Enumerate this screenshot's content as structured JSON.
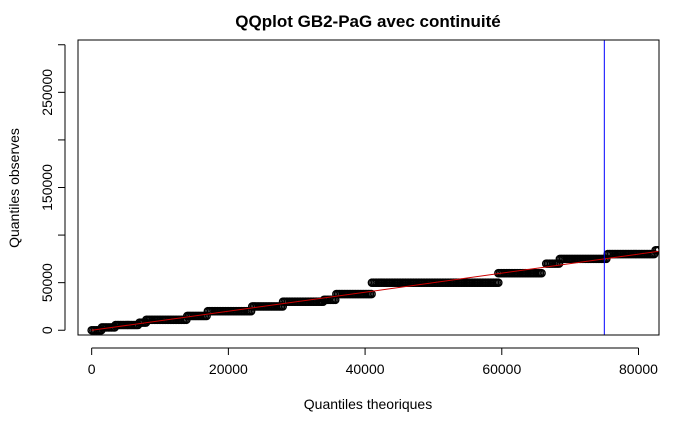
{
  "chart_data": {
    "type": "scatter",
    "title": "QQplot GB2-PaG avec continuité",
    "xlabel": "Quantiles theoriques",
    "ylabel": "Quantiles observes",
    "xlim": [
      -2000,
      83000
    ],
    "ylim": [
      -5000,
      305000
    ],
    "xticks": [
      0,
      20000,
      40000,
      60000,
      80000
    ],
    "xtick_labels": [
      "0",
      "20000",
      "40000",
      "60000",
      "80000"
    ],
    "yticks": [
      0,
      50000,
      150000,
      250000
    ],
    "ytick_labels": [
      "0",
      "50000",
      "150000",
      "250000"
    ],
    "yticks_minor": [
      100000,
      200000,
      300000
    ],
    "series": [
      {
        "kind": "points",
        "color": "#000000",
        "steps": [
          {
            "x0": 0,
            "x1": 1500,
            "y": 0
          },
          {
            "x0": 1500,
            "x1": 3500,
            "y": 3000
          },
          {
            "x0": 3500,
            "x1": 7000,
            "y": 5500
          },
          {
            "x0": 7000,
            "x1": 8000,
            "y": 8000
          },
          {
            "x0": 8000,
            "x1": 14000,
            "y": 11000
          },
          {
            "x0": 14000,
            "x1": 17000,
            "y": 15000
          },
          {
            "x0": 17000,
            "x1": 23500,
            "y": 20000
          },
          {
            "x0": 23500,
            "x1": 28000,
            "y": 25000
          },
          {
            "x0": 28000,
            "x1": 34000,
            "y": 30000
          },
          {
            "x0": 34000,
            "x1": 35800,
            "y": 32000
          },
          {
            "x0": 35800,
            "x1": 41000,
            "y": 38000
          },
          {
            "x0": 41000,
            "x1": 59500,
            "y": 50000
          },
          {
            "x0": 59500,
            "x1": 66000,
            "y": 60000
          },
          {
            "x0": 66500,
            "x1": 68500,
            "y": 70000
          },
          {
            "x0": 68500,
            "x1": 75500,
            "y": 75000
          },
          {
            "x0": 75500,
            "x1": 82500,
            "y": 80000
          },
          {
            "x0": 82500,
            "x1": 83000,
            "y": 84000
          }
        ]
      },
      {
        "kind": "line",
        "color": "#cc0000",
        "x": [
          0,
          83000
        ],
        "y": [
          0,
          83000
        ]
      },
      {
        "kind": "vline",
        "color": "#0000ff",
        "x": 75000
      }
    ],
    "grid": false
  }
}
